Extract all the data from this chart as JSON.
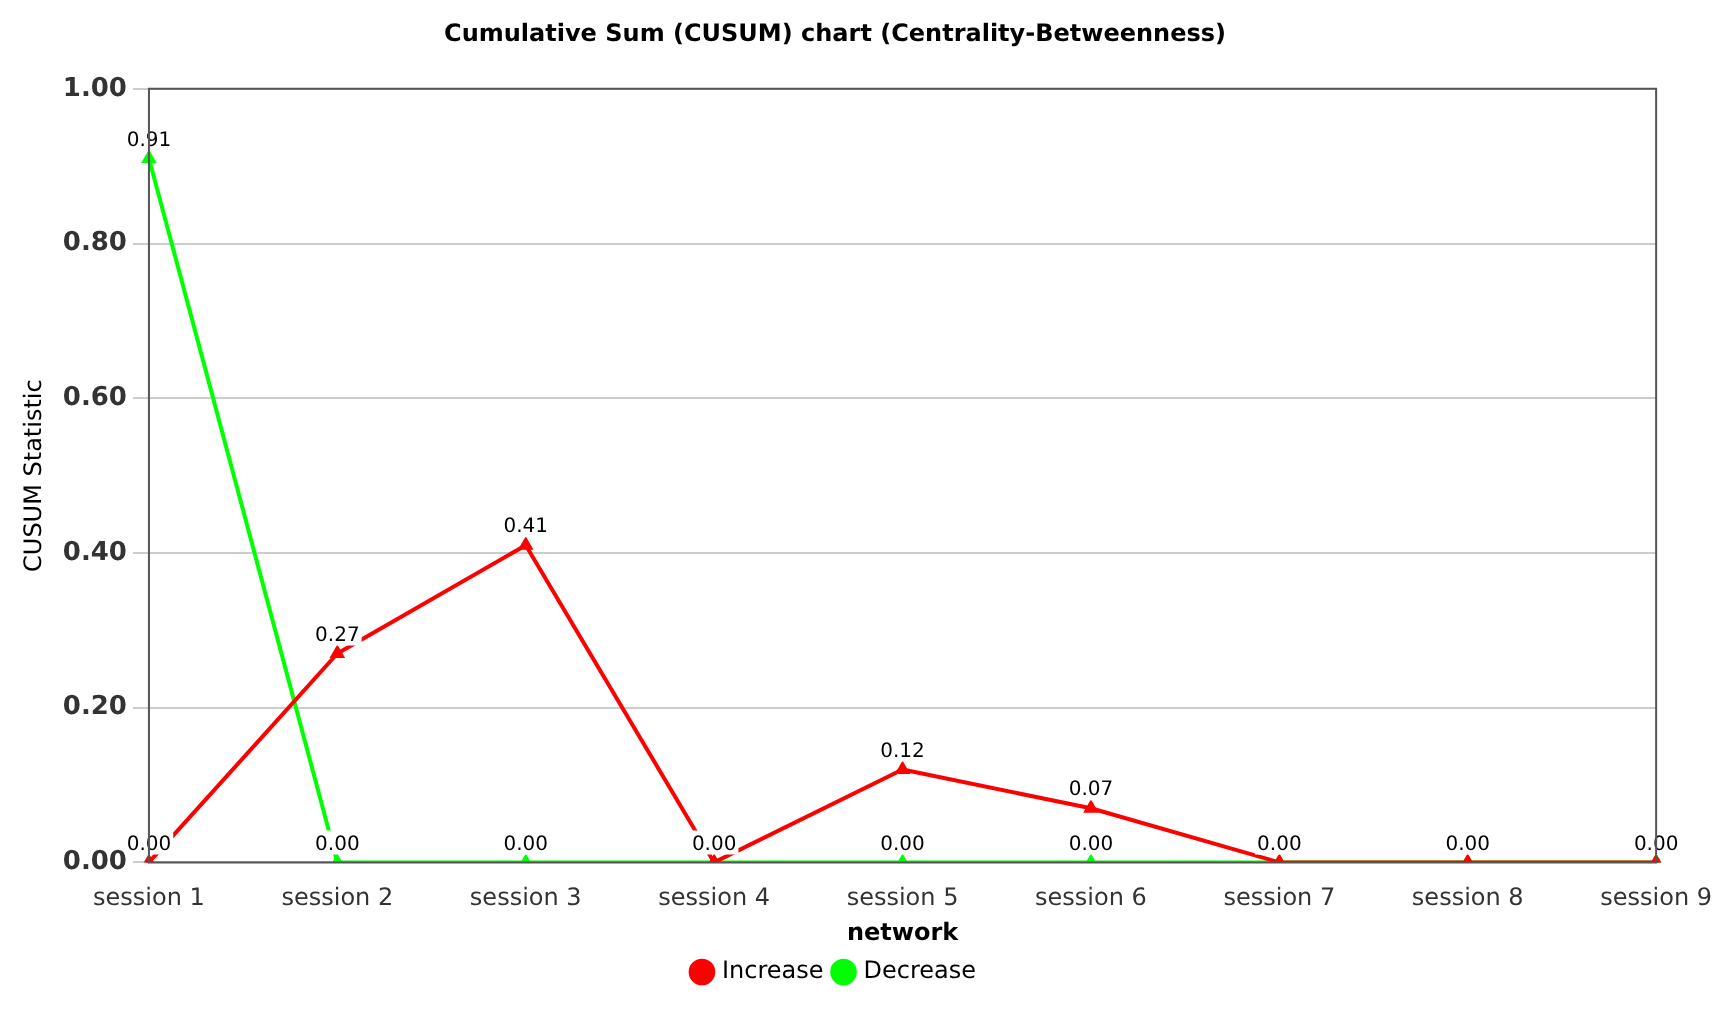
{
  "chart_data": {
    "type": "line",
    "title": "Cumulative Sum (CUSUM) chart (Centrality-Betweenness)",
    "xlabel": "network",
    "ylabel": "CUSUM Statistic",
    "categories": [
      "session 1",
      "session 2",
      "session 3",
      "session 4",
      "session 5",
      "session 6",
      "session 7",
      "session 8",
      "session 9"
    ],
    "series": [
      {
        "name": "Increase",
        "color": "#ff0000",
        "values": [
          0,
          0.27,
          0.41,
          0,
          0.12,
          0.07,
          0,
          0,
          0
        ],
        "value_labels": [
          "0.00",
          "0.27",
          "0.41",
          "0.00",
          "0.12",
          "0.07",
          "0.00",
          "0.00",
          "0.00"
        ]
      },
      {
        "name": "Decrease",
        "color": "#00ff00",
        "values": [
          0.91,
          0,
          0,
          0,
          0,
          0,
          0,
          0,
          0
        ],
        "value_labels": [
          "0.91",
          "0.00",
          "0.00",
          null,
          "0.00",
          "0.00",
          null,
          null,
          null
        ]
      }
    ],
    "ylim": [
      0,
      1
    ],
    "yticks": [
      {
        "value": 0,
        "label": "0.00"
      },
      {
        "value": 0.2,
        "label": "0.20"
      },
      {
        "value": 0.4,
        "label": "0.40"
      },
      {
        "value": 0.6,
        "label": "0.60"
      },
      {
        "value": 0.8,
        "label": "0.80"
      },
      {
        "value": 1,
        "label": "1.00"
      }
    ],
    "grid": "y",
    "legend": "bottom",
    "marker": "triangle",
    "line_style": "solid"
  }
}
